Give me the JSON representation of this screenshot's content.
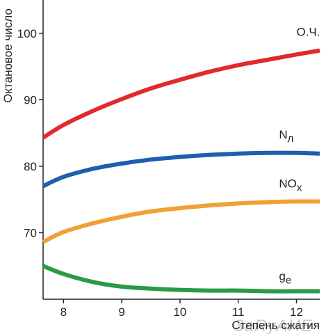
{
  "chart_data": {
    "type": "line",
    "xlabel": "Степень сжатия",
    "ylabel": "Октановое число",
    "xlim": [
      7.65,
      12.4
    ],
    "ylim": [
      60,
      105
    ],
    "x_ticks": [
      8,
      9,
      10,
      11,
      12
    ],
    "y_ticks": [
      70,
      80,
      90,
      100
    ],
    "grid": false,
    "series": [
      {
        "name": "О.Ч.",
        "color": "#e02a2e",
        "x": [
          7.65,
          8,
          8.5,
          9,
          9.5,
          10,
          10.5,
          11,
          11.5,
          12,
          12.4
        ],
        "values": [
          84.3,
          86.2,
          88.3,
          90.1,
          91.7,
          93.0,
          94.2,
          95.2,
          96.0,
          96.8,
          97.4
        ]
      },
      {
        "name": "Nл",
        "color": "#1c5fae",
        "x": [
          7.65,
          8,
          8.5,
          9,
          9.5,
          10,
          10.5,
          11,
          11.5,
          12,
          12.4
        ],
        "values": [
          77.0,
          78.4,
          79.6,
          80.4,
          81.0,
          81.4,
          81.7,
          81.9,
          82.0,
          82.0,
          81.9
        ]
      },
      {
        "name": "NOx",
        "color": "#f0a035",
        "x": [
          7.65,
          8,
          8.5,
          9,
          9.5,
          10,
          10.5,
          11,
          11.5,
          12,
          12.4
        ],
        "values": [
          68.6,
          70.1,
          71.4,
          72.4,
          73.2,
          73.7,
          74.1,
          74.4,
          74.6,
          74.7,
          74.7
        ]
      },
      {
        "name": "ge",
        "color": "#2a9a45",
        "x": [
          7.65,
          8,
          8.5,
          9,
          9.5,
          10,
          10.5,
          11,
          11.5,
          12,
          12.4
        ],
        "values": [
          65.0,
          63.8,
          62.6,
          61.9,
          61.6,
          61.4,
          61.3,
          61.3,
          61.2,
          61.2,
          61.2
        ]
      }
    ],
    "series_label_display": [
      {
        "main": "О.Ч.",
        "sub": ""
      },
      {
        "main": "N",
        "sub": "л"
      },
      {
        "main": "NO",
        "sub": "x"
      },
      {
        "main": "g",
        "sub": "e"
      }
    ],
    "label_anchor_x": [
      12.0,
      11.7,
      11.7,
      11.7
    ],
    "label_anchor_y": [
      99.6,
      84.2,
      76.8,
      62.9
    ],
    "watermark": "ЗaRyAHE"
  }
}
